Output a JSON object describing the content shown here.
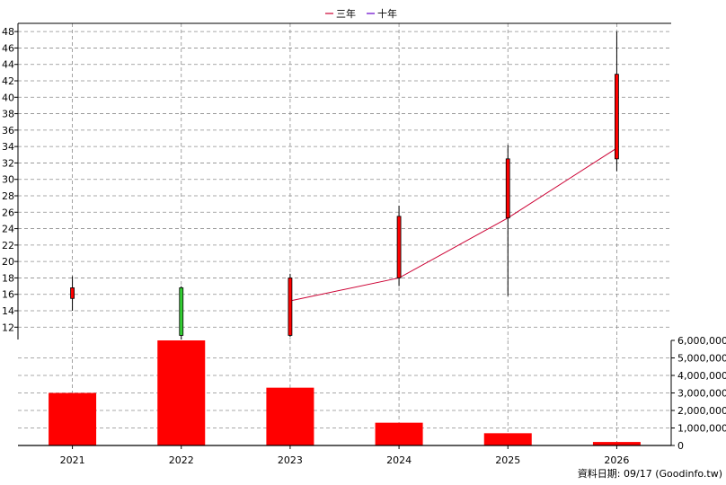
{
  "legend": {
    "items": [
      {
        "label": "三年",
        "color": "#cc0033"
      },
      {
        "label": "十年",
        "color": "#6600cc"
      }
    ]
  },
  "footer": {
    "text": "資料日期: 09/17  (Goodinfo.tw)"
  },
  "chart_data": {
    "type": "candlestick+line+bar",
    "years": [
      "2021",
      "2022",
      "2023",
      "2024",
      "2025",
      "2026"
    ],
    "price_axis": {
      "ticks": [
        12,
        14,
        16,
        18,
        20,
        22,
        24,
        26,
        28,
        30,
        32,
        34,
        36,
        38,
        40,
        42,
        44,
        46,
        48
      ],
      "range": [
        10.5,
        49
      ]
    },
    "volume_axis": {
      "ticks": [
        "0",
        "1,000,000",
        "2,000,000",
        "3,000,000",
        "4,000,000",
        "5,000,000",
        "6,000,000"
      ],
      "range": [
        0,
        6000000
      ]
    },
    "candles": [
      {
        "year": "2021",
        "open": 15.5,
        "high": 18.2,
        "low": 14.0,
        "close": 16.8,
        "color": "#ff0000"
      },
      {
        "year": "2022",
        "open": 11.0,
        "high": 17.0,
        "low": 10.5,
        "close": 16.8,
        "color": "#33cc33"
      },
      {
        "year": "2023",
        "open": 11.0,
        "high": 18.5,
        "low": 10.8,
        "close": 18.0,
        "color": "#ff0000"
      },
      {
        "year": "2024",
        "open": 18.0,
        "high": 26.8,
        "low": 17.0,
        "close": 25.5,
        "color": "#ff0000"
      },
      {
        "year": "2025",
        "open": 25.3,
        "high": 34.2,
        "low": 15.8,
        "close": 32.5,
        "color": "#ff0000"
      },
      {
        "year": "2026",
        "open": 32.5,
        "high": 48.0,
        "low": 31.0,
        "close": 42.8,
        "color": "#ff0000"
      }
    ],
    "series": [
      {
        "name": "三年",
        "color": "#cc0033",
        "points": [
          [
            "2023",
            15.2
          ],
          [
            "2024",
            18.0
          ],
          [
            "2025",
            25.3
          ],
          [
            "2026",
            33.8
          ]
        ]
      }
    ],
    "volume": [
      3000000,
      6000000,
      3300000,
      1300000,
      700000,
      200000
    ],
    "volume_color": "#ff0000",
    "grid": true
  }
}
